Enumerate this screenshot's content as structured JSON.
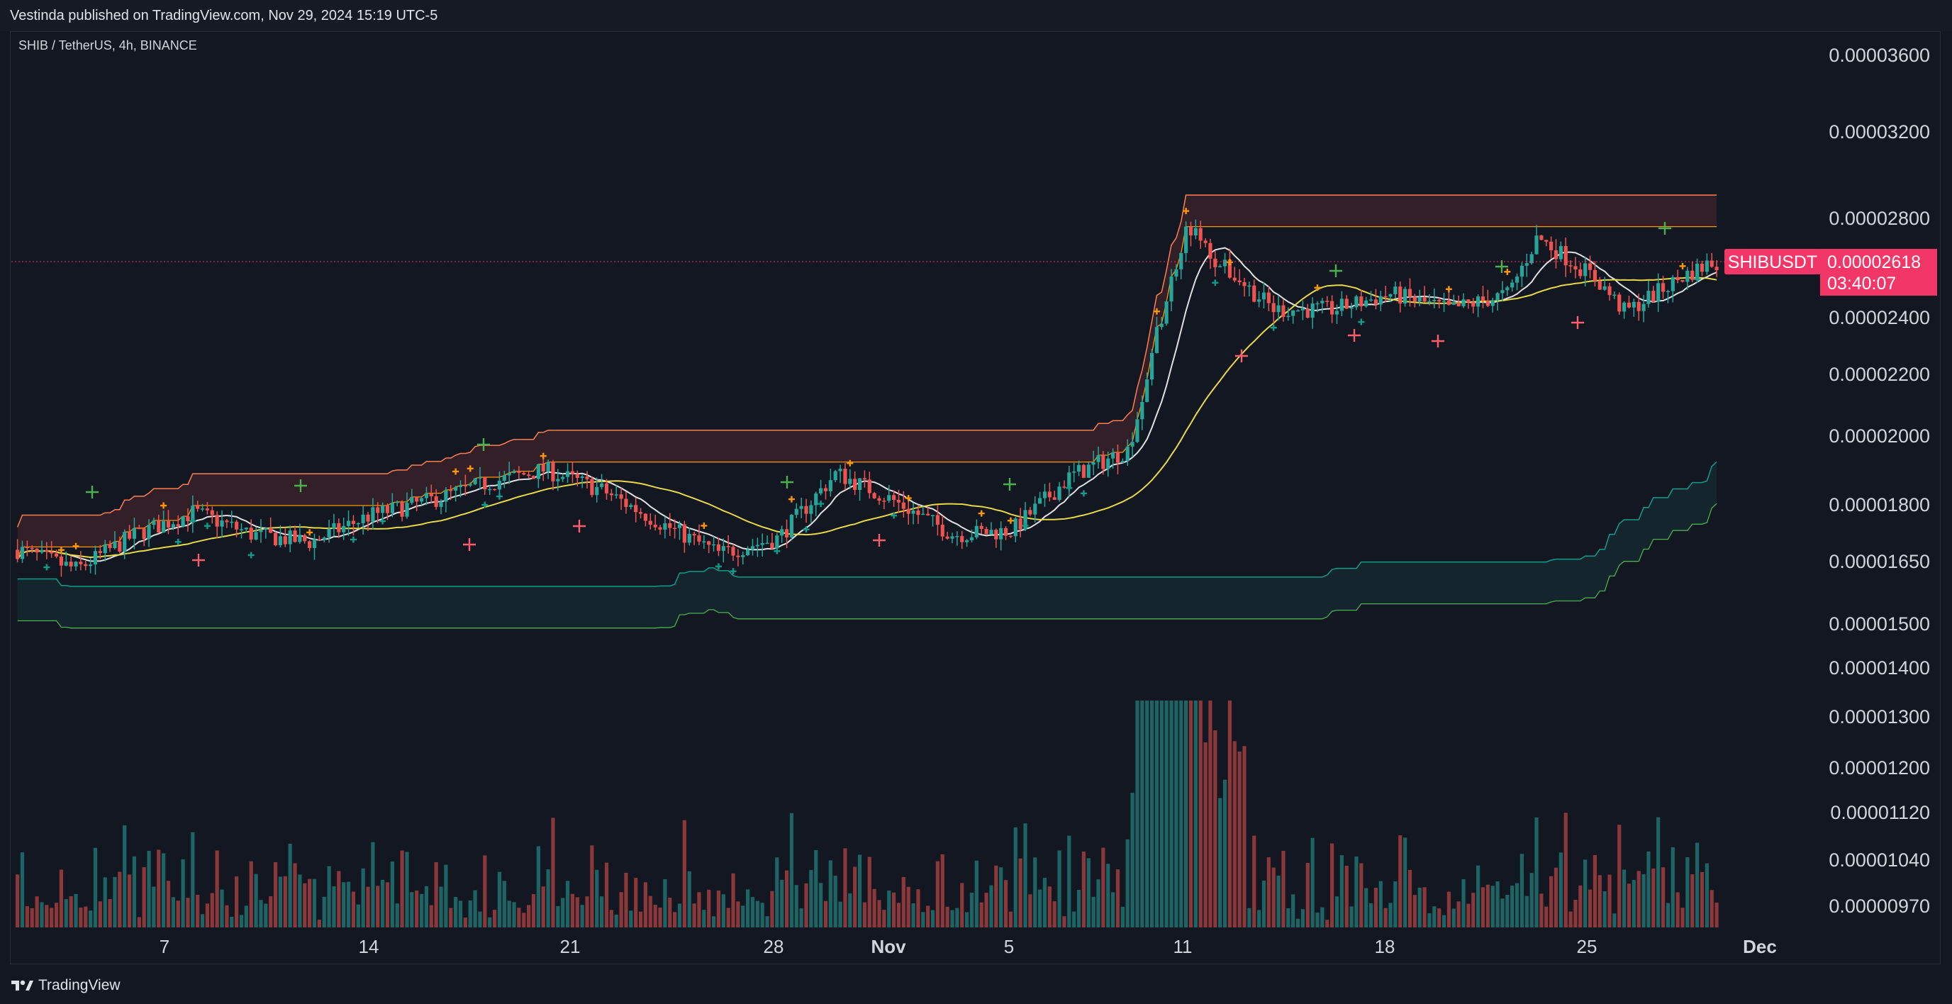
{
  "header": {
    "publish_text": "Vestinda published on TradingView.com, Nov 29, 2024 15:19 UTC-5"
  },
  "chart": {
    "symbol_line": "SHIB / TetherUS, 4h, BINANCE"
  },
  "footer": {
    "brand": "TradingView"
  },
  "colors": {
    "background": "#131722",
    "up": "#26a69a",
    "down": "#ef5350",
    "accent": "#f23667",
    "band_upper": "#ff7f50",
    "band_lower": "#0f9d8a",
    "ma_yellow": "#e8d94a",
    "ma_white": "#e0e0e0",
    "marker_orange": "#ff9800",
    "marker_green": "#4caf50",
    "marker_red": "#ff5c6c"
  },
  "chart_data": {
    "type": "candlestick",
    "title": "SHIB / TetherUS, 4h, BINANCE",
    "y_tick_labels": [
      "0.00003600",
      "0.00003200",
      "0.00002800",
      "0.00002400",
      "0.00002200",
      "0.00002000",
      "0.00001800",
      "0.00001650",
      "0.00001500",
      "0.00001400",
      "0.00001300",
      "0.00001200",
      "0.00001120",
      "0.00001040",
      "0.00000970"
    ],
    "y_tick_values": [
      3.6e-05,
      3.2e-05,
      2.8e-05,
      2.4e-05,
      2.2e-05,
      2e-05,
      1.8e-05,
      1.65e-05,
      1.5e-05,
      1.4e-05,
      1.3e-05,
      1.2e-05,
      1.12e-05,
      1.04e-05,
      9.7e-06
    ],
    "y_scale": "log",
    "x_tick_labels": [
      "7",
      "14",
      "21",
      "28",
      "Nov",
      "5",
      "11",
      "18",
      "25",
      "Dec"
    ],
    "last_price": {
      "symbol": "SHIBUSDT",
      "price": "0.00002618",
      "countdown": "03:40:07"
    },
    "price_path": [
      {
        "date": "Oct 2",
        "close": 1.68e-05
      },
      {
        "date": "Oct 4",
        "close": 1.63e-05
      },
      {
        "date": "Oct 6",
        "close": 1.72e-05
      },
      {
        "date": "Oct 8",
        "close": 1.78e-05
      },
      {
        "date": "Oct 10",
        "close": 1.72e-05
      },
      {
        "date": "Oct 12",
        "close": 1.7e-05
      },
      {
        "date": "Oct 14",
        "close": 1.77e-05
      },
      {
        "date": "Oct 16",
        "close": 1.81e-05
      },
      {
        "date": "Oct 18",
        "close": 1.86e-05
      },
      {
        "date": "Oct 20",
        "close": 1.9e-05
      },
      {
        "date": "Oct 22",
        "close": 1.84e-05
      },
      {
        "date": "Oct 24",
        "close": 1.75e-05
      },
      {
        "date": "Oct 26",
        "close": 1.67e-05
      },
      {
        "date": "Oct 28",
        "close": 1.71e-05
      },
      {
        "date": "Oct 30",
        "close": 1.89e-05
      },
      {
        "date": "Nov 1",
        "close": 1.81e-05
      },
      {
        "date": "Nov 3",
        "close": 1.72e-05
      },
      {
        "date": "Nov 5",
        "close": 1.73e-05
      },
      {
        "date": "Nov 7",
        "close": 1.88e-05
      },
      {
        "date": "Nov 9",
        "close": 1.96e-05
      },
      {
        "date": "Nov 10",
        "close": 2.35e-05
      },
      {
        "date": "Nov 11",
        "close": 2.78e-05
      },
      {
        "date": "Nov 12",
        "close": 2.62e-05
      },
      {
        "date": "Nov 14",
        "close": 2.43e-05
      },
      {
        "date": "Nov 16",
        "close": 2.43e-05
      },
      {
        "date": "Nov 18",
        "close": 2.49e-05
      },
      {
        "date": "Nov 20",
        "close": 2.43e-05
      },
      {
        "date": "Nov 22",
        "close": 2.49e-05
      },
      {
        "date": "Nov 23",
        "close": 2.72e-05
      },
      {
        "date": "Nov 25",
        "close": 2.55e-05
      },
      {
        "date": "Nov 26",
        "close": 2.42e-05
      },
      {
        "date": "Nov 28",
        "close": 2.56e-05
      },
      {
        "date": "Nov 29",
        "close": 2.618e-05
      }
    ]
  }
}
